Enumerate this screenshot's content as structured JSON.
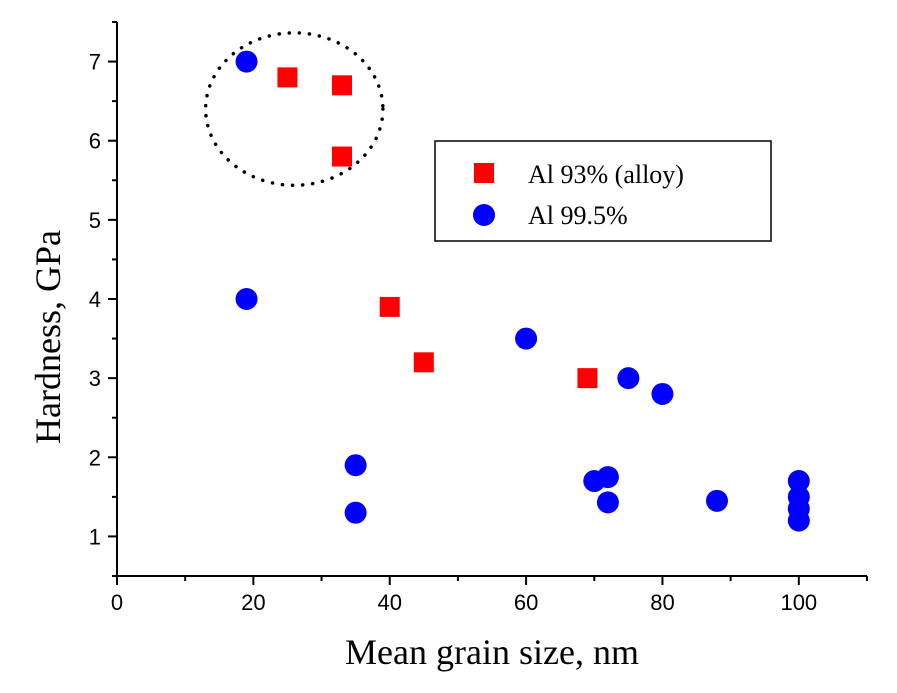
{
  "chart_data": {
    "type": "scatter",
    "title": "",
    "xlabel": "Mean grain size, nm",
    "ylabel": "Hardness, GPa",
    "xlim": [
      0,
      110
    ],
    "ylim": [
      0.5,
      7.5
    ],
    "x_ticks": [
      0,
      20,
      40,
      60,
      80,
      100
    ],
    "y_ticks": [
      1,
      2,
      3,
      4,
      5,
      6,
      7
    ],
    "grid": false,
    "legend_position": "top-right",
    "series": [
      {
        "name": "Al 93% (alloy)",
        "marker": "square",
        "color": "#ff0000",
        "x": [
          25,
          33,
          33,
          40,
          45,
          69
        ],
        "y": [
          6.8,
          6.7,
          5.8,
          3.9,
          3.2,
          3.0
        ]
      },
      {
        "name": "Al 99.5%",
        "marker": "circle",
        "color": "#0000ff",
        "x": [
          19,
          19,
          35,
          35,
          60,
          70,
          72,
          72,
          75,
          80,
          88,
          100,
          100,
          100,
          100
        ],
        "y": [
          7.0,
          4.0,
          1.9,
          1.3,
          3.5,
          1.7,
          1.75,
          1.43,
          3.0,
          2.8,
          1.45,
          1.7,
          1.5,
          1.35,
          1.2
        ]
      }
    ],
    "annotations": [
      {
        "type": "dotted-circle",
        "center": [
          26,
          6.4
        ],
        "radius_x_units": 13
      }
    ]
  }
}
